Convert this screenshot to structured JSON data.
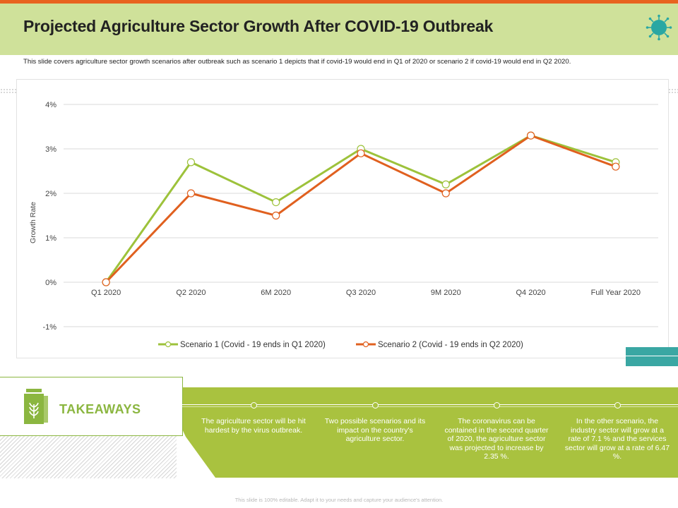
{
  "header": {
    "title": "Projected Agriculture Sector Growth After COVID-19 Outbreak",
    "subtitle": "This slide covers agriculture sector growth scenarios after outbreak such as scenario 1 depicts that if covid-19 would end in Q1 of 2020 or scenario 2 if covid-19 would end in Q2 2020.",
    "icon": "virus-icon"
  },
  "colors": {
    "accent_orange": "#e8631f",
    "header_green": "#cfe19a",
    "scenario1": "#9dc23b",
    "scenario2": "#e0601f",
    "teal": "#3aa7a3",
    "panel_green": "#a9c23f"
  },
  "chart_data": {
    "type": "line",
    "categories": [
      "Q1 2020",
      "Q2 2020",
      "6M 2020",
      "Q3 2020",
      "9M 2020",
      "Q4 2020",
      "Full Year 2020"
    ],
    "series": [
      {
        "name": "Scenario 1 (Covid - 19 ends in Q1 2020)",
        "values": [
          0,
          2.7,
          1.8,
          3.0,
          2.2,
          3.3,
          2.7
        ]
      },
      {
        "name": "Scenario 2 (Covid - 19 ends in Q2 2020)",
        "values": [
          0,
          2.0,
          1.5,
          2.9,
          2.0,
          3.3,
          2.6
        ]
      }
    ],
    "ylabel": "Growth Rate",
    "ylim": [
      -1,
      4
    ],
    "yticks": [
      -1,
      0,
      1,
      2,
      3,
      4
    ],
    "ytick_labels": [
      "-1%",
      "0%",
      "1%",
      "2%",
      "3%",
      "4%"
    ],
    "grid": true,
    "legend_position": "bottom"
  },
  "takeaways": {
    "title": "TAKEAWAYS",
    "icon": "agriculture-bag-icon",
    "points": [
      "The agriculture sector will be hit hardest by the virus outbreak.",
      "Two possible scenarios and its impact on the country's agriculture sector.",
      "The coronavirus can be contained in the second quarter of 2020, the agriculture sector was projected to increase by 2.35 %.",
      "In the other scenario, the industry sector will grow at a rate of 7.1 % and the services sector will grow at a rate of 6.47 %."
    ]
  },
  "footer": "This slide is 100% editable. Adapt it to your needs and capture your audience's attention."
}
